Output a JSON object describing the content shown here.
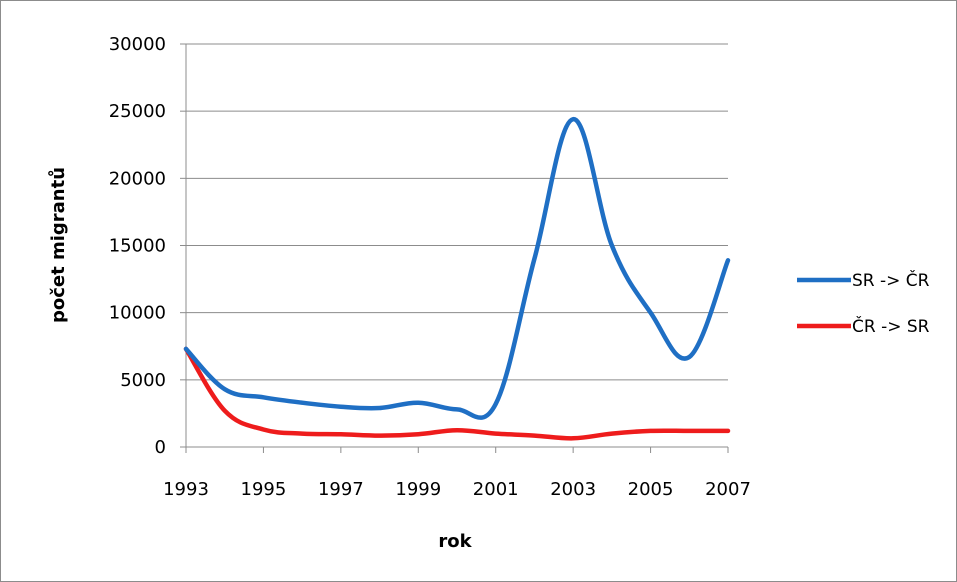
{
  "chart_data": {
    "type": "line",
    "title": "",
    "xlabel": "rok",
    "ylabel": "počet migrantů",
    "x": [
      1993,
      1994,
      1995,
      1996,
      1997,
      1998,
      1999,
      2000,
      2001,
      2002,
      2003,
      2004,
      2005,
      2006,
      2007
    ],
    "x_ticks": [
      "1993",
      "1995",
      "1997",
      "1999",
      "2001",
      "2003",
      "2005",
      "2007"
    ],
    "y_ticks": [
      "0",
      "5000",
      "10000",
      "15000",
      "20000",
      "25000",
      "30000"
    ],
    "xlim": [
      1993,
      2007
    ],
    "ylim": [
      0,
      30000
    ],
    "grid": "horizontal",
    "legend_position": "right",
    "series": [
      {
        "name": "SR -> ČR",
        "color": "#1f6fc4",
        "values": [
          7300,
          4300,
          3700,
          3300,
          3000,
          2900,
          3300,
          2800,
          3200,
          14000,
          24400,
          15000,
          10000,
          6700,
          13900
        ]
      },
      {
        "name": "ČR -> SR",
        "color": "#ee1c1c",
        "values": [
          7300,
          2700,
          1300,
          1000,
          950,
          850,
          950,
          1250,
          1000,
          850,
          650,
          1000,
          1200,
          1200,
          1200
        ]
      }
    ]
  }
}
